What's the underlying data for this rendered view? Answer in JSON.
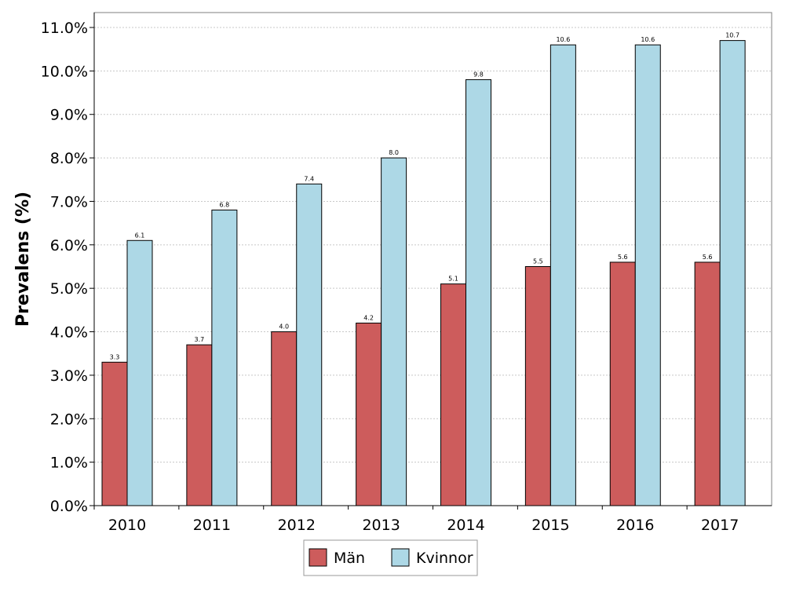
{
  "chart_data": {
    "type": "bar",
    "title": "",
    "xlabel": "",
    "ylabel": "Prevalens (%)",
    "categories": [
      "2010",
      "2011",
      "2012",
      "2013",
      "2014",
      "2015",
      "2016",
      "2017"
    ],
    "series": [
      {
        "name": "Män",
        "color": "#cd5c5c",
        "values": [
          3.3,
          3.7,
          4.0,
          4.2,
          5.1,
          5.5,
          5.6,
          5.6
        ],
        "labels": [
          "3.3",
          "3.7",
          "4.0",
          "4.2",
          "5.1",
          "5.5",
          "5.6",
          "5.6"
        ]
      },
      {
        "name": "Kvinnor",
        "color": "#add8e6",
        "values": [
          6.1,
          6.8,
          7.4,
          8.0,
          9.8,
          10.6,
          10.6,
          10.7
        ],
        "labels": [
          "6.1",
          "6.8",
          "7.4",
          "8.0",
          "9.8",
          "10.6",
          "10.6",
          "10.7"
        ]
      }
    ],
    "ylim": [
      0,
      11
    ],
    "yticks": [
      "0.0%",
      "1.0%",
      "2.0%",
      "3.0%",
      "4.0%",
      "5.0%",
      "6.0%",
      "7.0%",
      "8.0%",
      "9.0%",
      "10.0%",
      "11.0%"
    ],
    "grid": true,
    "legend_position": "bottom"
  }
}
